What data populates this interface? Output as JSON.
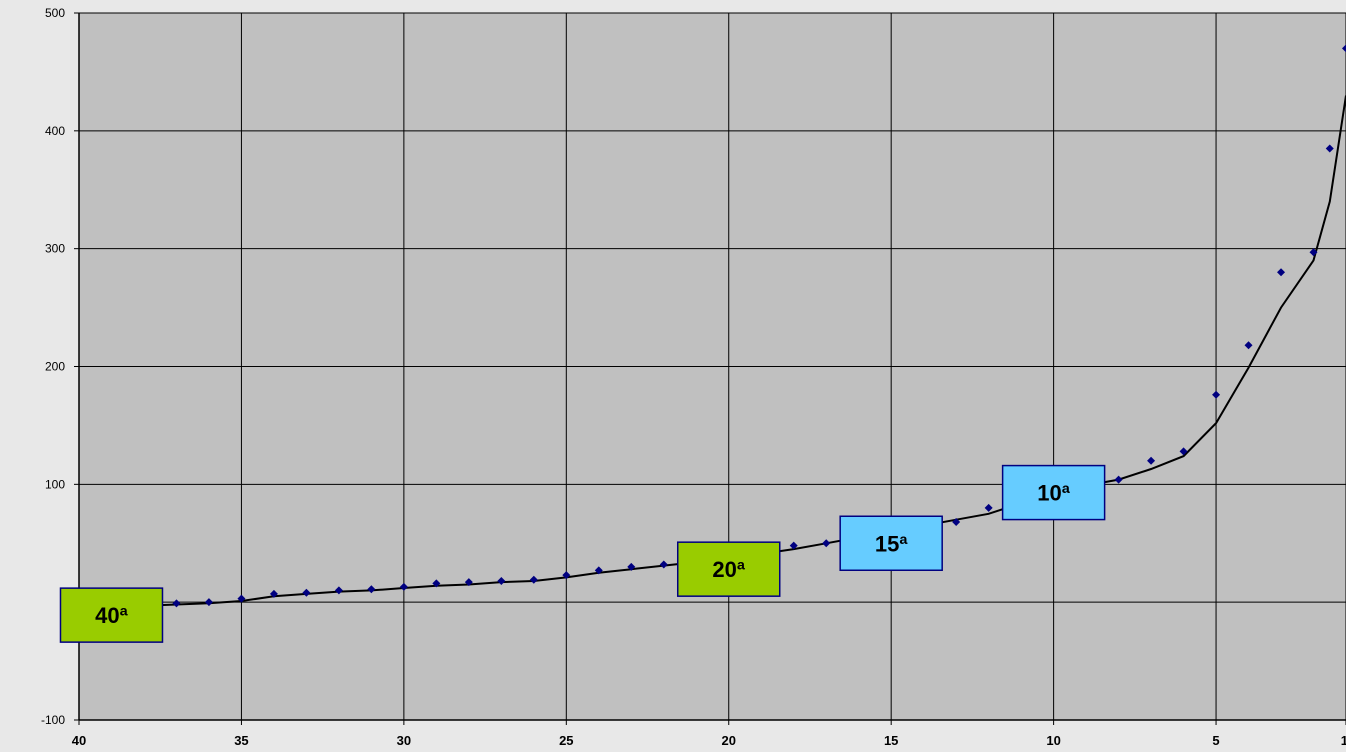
{
  "chart_data": {
    "type": "scatter",
    "title": "",
    "xlabel": "",
    "ylabel": "",
    "xlim": [
      40,
      1
    ],
    "ylim": [
      -100,
      500
    ],
    "x_reversed": true,
    "grid": true,
    "x_ticks": [
      40,
      35,
      30,
      25,
      20,
      15,
      10,
      5,
      1
    ],
    "y_ticks": [
      -100,
      100,
      200,
      300,
      400,
      500
    ],
    "x_tick_labels": [
      "40",
      "35",
      "30",
      "25",
      "20",
      "15",
      "10",
      "5",
      "1"
    ],
    "y_tick_labels": [
      "-100",
      "100",
      "200",
      "300",
      "400",
      "500"
    ],
    "colors": {
      "plot_background": "#c0c0c0",
      "page_background": "#e8e8e8",
      "points": "#000080",
      "trend_line": "#000000",
      "green_callout": "#99cc00",
      "blue_callout": "#66ccff"
    },
    "series": [
      {
        "kind": "points",
        "x": [
          39,
          38,
          37,
          36,
          35,
          34,
          33,
          32,
          31,
          30,
          29,
          28,
          27,
          26,
          25,
          24,
          23,
          22,
          21,
          20,
          19,
          18,
          17,
          16,
          15,
          14,
          13,
          12,
          11,
          10,
          9,
          8,
          7,
          6,
          5,
          4,
          3,
          2,
          1.5,
          1
        ],
        "y": [
          -3,
          -2,
          -1,
          0,
          3,
          7,
          8,
          10,
          11,
          13,
          16,
          17,
          18,
          19,
          23,
          27,
          30,
          32,
          34,
          36,
          40,
          48,
          50,
          55,
          60,
          63,
          68,
          80,
          85,
          90,
          95,
          104,
          120,
          128,
          176,
          218,
          280,
          297,
          385,
          470
        ]
      },
      {
        "kind": "trend",
        "x": [
          40,
          38,
          37,
          36,
          35,
          34,
          33,
          32,
          31,
          30,
          29,
          28,
          27,
          26,
          25,
          24,
          23,
          22,
          21,
          20,
          19,
          18,
          17,
          16,
          15,
          14,
          13,
          12,
          11,
          10,
          9,
          8,
          7,
          6,
          5,
          4,
          3,
          2,
          1.5,
          1
        ],
        "y": [
          -3,
          -3,
          -2,
          -1,
          1,
          5,
          7,
          9,
          10,
          12,
          14,
          15,
          17,
          18,
          21,
          25,
          28,
          31,
          34,
          37,
          41,
          45,
          50,
          55,
          60,
          65,
          70,
          75,
          84,
          92,
          99,
          104,
          113,
          124,
          152,
          199,
          250,
          290,
          340,
          430
        ]
      }
    ],
    "annotations": [
      {
        "label": "40ª",
        "x": 39,
        "y": -11,
        "style": "green"
      },
      {
        "label": "20ª",
        "x": 20,
        "y": 28,
        "style": "green"
      },
      {
        "label": "15ª",
        "x": 15,
        "y": 50,
        "style": "blue"
      },
      {
        "label": "10ª",
        "x": 10,
        "y": 93,
        "style": "blue"
      }
    ]
  }
}
